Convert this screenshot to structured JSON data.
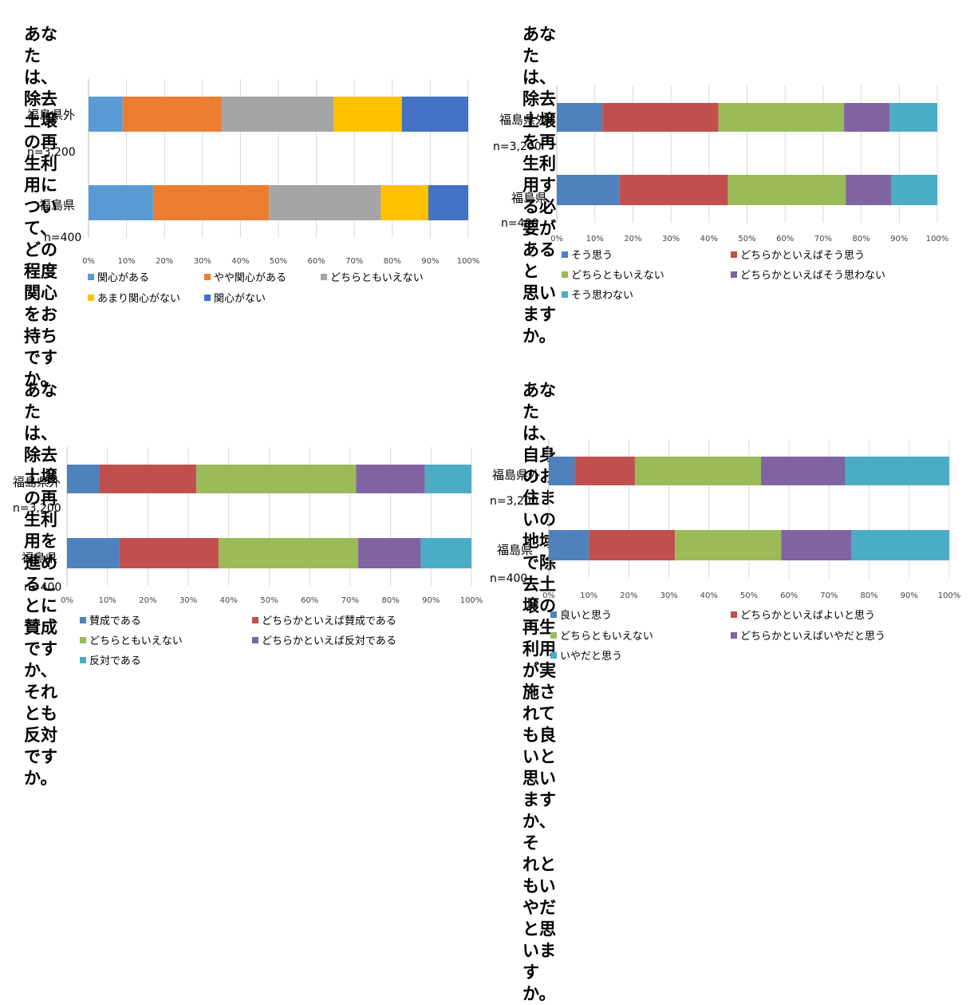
{
  "chart_data": [
    {
      "type": "bar",
      "orientation": "horizontal-stacked-percent",
      "title": "あなたは、除去土壌の再生利用について、どの程度関心をお持ちですか。",
      "title_lines": [
        "あなたは、除去土壌の再生利用について、どの程度",
        "関心をお持ちですか。"
      ],
      "categories": [
        "福島県外",
        "福島県"
      ],
      "sample_sizes": [
        "n=3,200",
        "n=400"
      ],
      "x_ticks": [
        "0%",
        "10%",
        "20%",
        "30%",
        "40%",
        "50%",
        "60%",
        "70%",
        "80%",
        "90%",
        "100%"
      ],
      "xlim": [
        0,
        100
      ],
      "legend_position": "bottom",
      "series": [
        {
          "name": "関心がある",
          "color": "#5B9BD5",
          "values": [
            9,
            17
          ]
        },
        {
          "name": "やや関心がある",
          "color": "#ED7D31",
          "values": [
            26,
            30.5
          ]
        },
        {
          "name": "どちらともいえない",
          "color": "#A5A5A5",
          "values": [
            29.5,
            29.5
          ]
        },
        {
          "name": "あまり関心がない",
          "color": "#FFC000",
          "values": [
            18,
            12.5
          ]
        },
        {
          "name": "関心がない",
          "color": "#4472C4",
          "values": [
            17.5,
            10.5
          ]
        }
      ]
    },
    {
      "type": "bar",
      "orientation": "horizontal-stacked-percent",
      "title": "あなたは、除去土壌を再生利用する必要があると思いますか。",
      "title_lines": [
        "あなたは、除去土壌を再生利用する必要があると",
        "思いますか。"
      ],
      "categories": [
        "福島県外",
        "福島県"
      ],
      "sample_sizes": [
        "n=3,200",
        "n=400"
      ],
      "x_ticks": [
        "0%",
        "10%",
        "20%",
        "30%",
        "40%",
        "50%",
        "60%",
        "70%",
        "80%",
        "90%",
        "100%"
      ],
      "xlim": [
        0,
        100
      ],
      "legend_position": "bottom",
      "series": [
        {
          "name": "そう思う",
          "color": "#4F81BD",
          "values": [
            12,
            16.5
          ]
        },
        {
          "name": "どちらかといえばそう思う",
          "color": "#C0504D",
          "values": [
            30.5,
            28.5
          ]
        },
        {
          "name": "どちらともいえない",
          "color": "#9BBB59",
          "values": [
            33,
            31
          ]
        },
        {
          "name": "どちらかといえばそう思わない",
          "color": "#8064A2",
          "values": [
            12,
            12
          ]
        },
        {
          "name": "そう思わない",
          "color": "#4BACC6",
          "values": [
            12.5,
            12
          ]
        }
      ]
    },
    {
      "type": "bar",
      "orientation": "horizontal-stacked-percent",
      "title": "あなたは、除去土壌の再生利用を進めることに賛成ですか、それとも反対ですか。",
      "title_lines": [
        "あなたは、除去土壌の再生利用を進めることに賛成",
        "ですか、それとも反対ですか。"
      ],
      "categories": [
        "福島県外",
        "福島県"
      ],
      "sample_sizes": [
        "n=3,200",
        "n=400"
      ],
      "x_ticks": [
        "0%",
        "10%",
        "20%",
        "30%",
        "40%",
        "50%",
        "60%",
        "70%",
        "80%",
        "90%",
        "100%"
      ],
      "xlim": [
        0,
        100
      ],
      "legend_position": "bottom",
      "series": [
        {
          "name": "賛成である",
          "color": "#4F81BD",
          "values": [
            8,
            13
          ]
        },
        {
          "name": "どちらかといえば賛成である",
          "color": "#C0504D",
          "values": [
            24,
            24.5
          ]
        },
        {
          "name": "どちらともいえない",
          "color": "#9BBB59",
          "values": [
            39.5,
            34.5
          ]
        },
        {
          "name": "どちらかといえば反対である",
          "color": "#8064A2",
          "values": [
            17,
            15.5
          ]
        },
        {
          "name": "反対である",
          "color": "#4BACC6",
          "values": [
            11.5,
            12.5
          ]
        }
      ]
    },
    {
      "type": "bar",
      "orientation": "horizontal-stacked-percent",
      "title": "あなたは、自身のお住まいの地域で除去土壌の再生利用が実施されても良いと思いますか、それともいやだと思いますか。",
      "title_lines": [
        "あなたは、自身のお住まいの地域で除去土壌の",
        "再生利用が実施されても良いと思いますか、そ",
        "れともいやだと思いますか。"
      ],
      "categories": [
        "福島県外",
        "福島県"
      ],
      "sample_sizes": [
        "n=3,200",
        "n=400"
      ],
      "x_ticks": [
        "0%",
        "10%",
        "20%",
        "30%",
        "40%",
        "50%",
        "60%",
        "70%",
        "80%",
        "90%",
        "100%"
      ],
      "xlim": [
        0,
        100
      ],
      "legend_position": "bottom",
      "series": [
        {
          "name": "良いと思う",
          "color": "#4F81BD",
          "values": [
            6.5,
            10
          ]
        },
        {
          "name": "どちらかといえばよいと思う",
          "color": "#C0504D",
          "values": [
            15,
            21.5
          ]
        },
        {
          "name": "どちらともいえない",
          "color": "#9BBB59",
          "values": [
            31.5,
            26.5
          ]
        },
        {
          "name": "どちらかといえばいやだと思う",
          "color": "#8064A2",
          "values": [
            21,
            17.5
          ]
        },
        {
          "name": "いやだと思う",
          "color": "#4BACC6",
          "values": [
            26,
            24.5
          ]
        }
      ]
    }
  ]
}
